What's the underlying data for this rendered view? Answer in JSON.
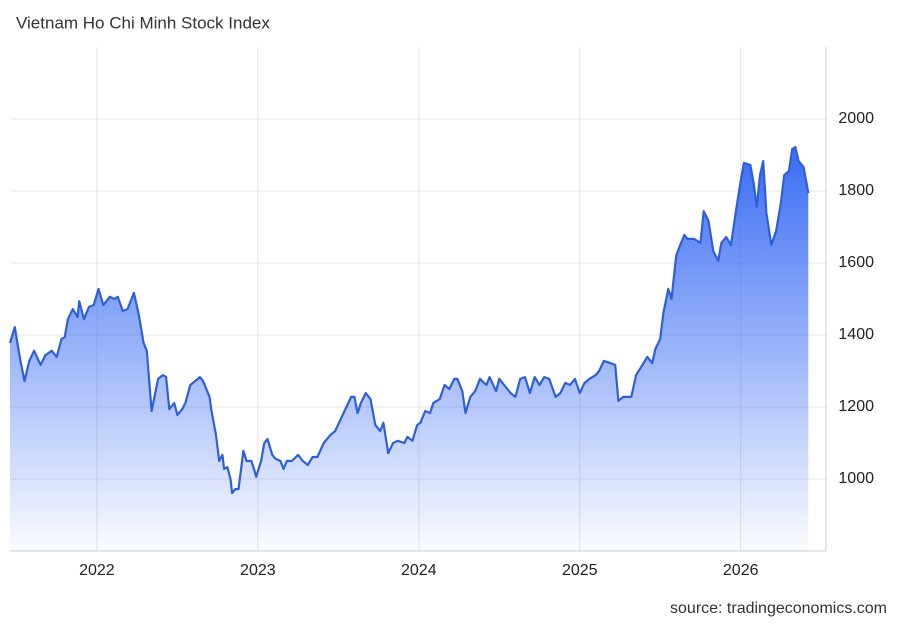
{
  "chart_data": {
    "type": "area",
    "title": "Vietnam Ho Chi Minh Stock Index",
    "source": "source: tradingeconomics.com",
    "color": "#2f5fd8",
    "x": [
      2021.46,
      2021.49,
      2021.52,
      2021.55,
      2021.58,
      2021.61,
      2021.65,
      2021.68,
      2021.72,
      2021.75,
      2021.78,
      2021.8,
      2021.82,
      2021.85,
      2021.88,
      2021.89,
      2021.92,
      2021.95,
      2021.98,
      2022.01,
      2022.04,
      2022.08,
      2022.11,
      2022.13,
      2022.16,
      2022.19,
      2022.23,
      2022.26,
      2022.29,
      2022.31,
      2022.34,
      2022.38,
      2022.41,
      2022.43,
      2022.45,
      2022.48,
      2022.5,
      2022.53,
      2022.55,
      2022.58,
      2022.61,
      2022.64,
      2022.66,
      2022.7,
      2022.71,
      2022.74,
      2022.76,
      2022.78,
      2022.79,
      2022.81,
      2022.83,
      2022.84,
      2022.86,
      2022.88,
      2022.91,
      2022.93,
      2022.96,
      2022.98,
      2022.99,
      2023.02,
      2023.04,
      2023.06,
      2023.09,
      2023.11,
      2023.14,
      2023.16,
      2023.18,
      2023.21,
      2023.25,
      2023.28,
      2023.31,
      2023.34,
      2023.37,
      2023.41,
      2023.45,
      2023.48,
      2023.51,
      2023.55,
      2023.58,
      2023.6,
      2023.62,
      2023.64,
      2023.67,
      2023.7,
      2023.73,
      2023.76,
      2023.78,
      2023.81,
      2023.84,
      2023.87,
      2023.91,
      2023.93,
      2023.96,
      2023.99,
      2024.01,
      2024.04,
      2024.07,
      2024.09,
      2024.13,
      2024.16,
      2024.19,
      2024.22,
      2024.24,
      2024.27,
      2024.29,
      2024.32,
      2024.35,
      2024.38,
      2024.42,
      2024.44,
      2024.48,
      2024.5,
      2024.53,
      2024.57,
      2024.6,
      2024.63,
      2024.66,
      2024.69,
      2024.72,
      2024.75,
      2024.78,
      2024.81,
      2024.85,
      2024.88,
      2024.91,
      2024.94,
      2024.97,
      2025.0,
      2025.03,
      2025.06,
      2025.1,
      2025.12,
      2025.15,
      2025.19,
      2025.22,
      2025.24,
      2025.27,
      2025.3,
      2025.32,
      2025.35,
      2025.39,
      2025.42,
      2025.45,
      2025.47,
      2025.5,
      2025.52,
      2025.55,
      2025.57,
      2025.6,
      2025.63,
      2025.65,
      2025.67,
      2025.71,
      2025.75,
      2025.77,
      2025.8,
      2025.83,
      2025.86,
      2025.88,
      2025.91,
      2025.94,
      2025.97,
      2026.0,
      2026.02,
      2026.06,
      2026.08,
      2026.1,
      2026.12,
      2026.14,
      2026.16,
      2026.19,
      2026.22,
      2026.25,
      2026.27,
      2026.3,
      2026.32,
      2026.34,
      2026.36,
      2026.39,
      2026.4,
      2026.42
    ],
    "values": [
      1378,
      1422,
      1339,
      1272,
      1328,
      1356,
      1317,
      1344,
      1356,
      1339,
      1389,
      1394,
      1444,
      1472,
      1450,
      1494,
      1444,
      1478,
      1483,
      1528,
      1483,
      1506,
      1500,
      1506,
      1467,
      1472,
      1517,
      1456,
      1378,
      1356,
      1189,
      1278,
      1289,
      1283,
      1194,
      1211,
      1178,
      1194,
      1211,
      1261,
      1272,
      1283,
      1272,
      1228,
      1194,
      1122,
      1050,
      1067,
      1028,
      1033,
      1000,
      961,
      972,
      972,
      1078,
      1050,
      1050,
      1022,
      1006,
      1050,
      1100,
      1111,
      1067,
      1056,
      1050,
      1028,
      1050,
      1050,
      1067,
      1050,
      1039,
      1061,
      1061,
      1100,
      1122,
      1133,
      1161,
      1200,
      1228,
      1228,
      1183,
      1211,
      1239,
      1222,
      1150,
      1133,
      1156,
      1072,
      1100,
      1106,
      1100,
      1117,
      1106,
      1150,
      1156,
      1189,
      1183,
      1211,
      1222,
      1261,
      1250,
      1278,
      1278,
      1244,
      1183,
      1228,
      1244,
      1278,
      1261,
      1283,
      1244,
      1278,
      1261,
      1239,
      1228,
      1278,
      1283,
      1239,
      1283,
      1261,
      1283,
      1278,
      1228,
      1239,
      1267,
      1261,
      1278,
      1239,
      1267,
      1278,
      1289,
      1300,
      1328,
      1322,
      1317,
      1217,
      1228,
      1228,
      1228,
      1289,
      1317,
      1339,
      1322,
      1361,
      1389,
      1461,
      1528,
      1500,
      1622,
      1656,
      1678,
      1667,
      1667,
      1656,
      1744,
      1717,
      1633,
      1606,
      1656,
      1672,
      1650,
      1744,
      1828,
      1878,
      1872,
      1822,
      1756,
      1844,
      1883,
      1739,
      1650,
      1689,
      1767,
      1844,
      1856,
      1917,
      1922,
      1883,
      1867,
      1844,
      1794
    ],
    "xlim": [
      2021.46,
      2026.53
    ],
    "xticks": [
      2022,
      2023,
      2024,
      2025,
      2026
    ],
    "ylim": [
      800,
      2200
    ],
    "yticks": [
      1000,
      1200,
      1400,
      1600,
      1800,
      2000
    ],
    "grid": true
  }
}
